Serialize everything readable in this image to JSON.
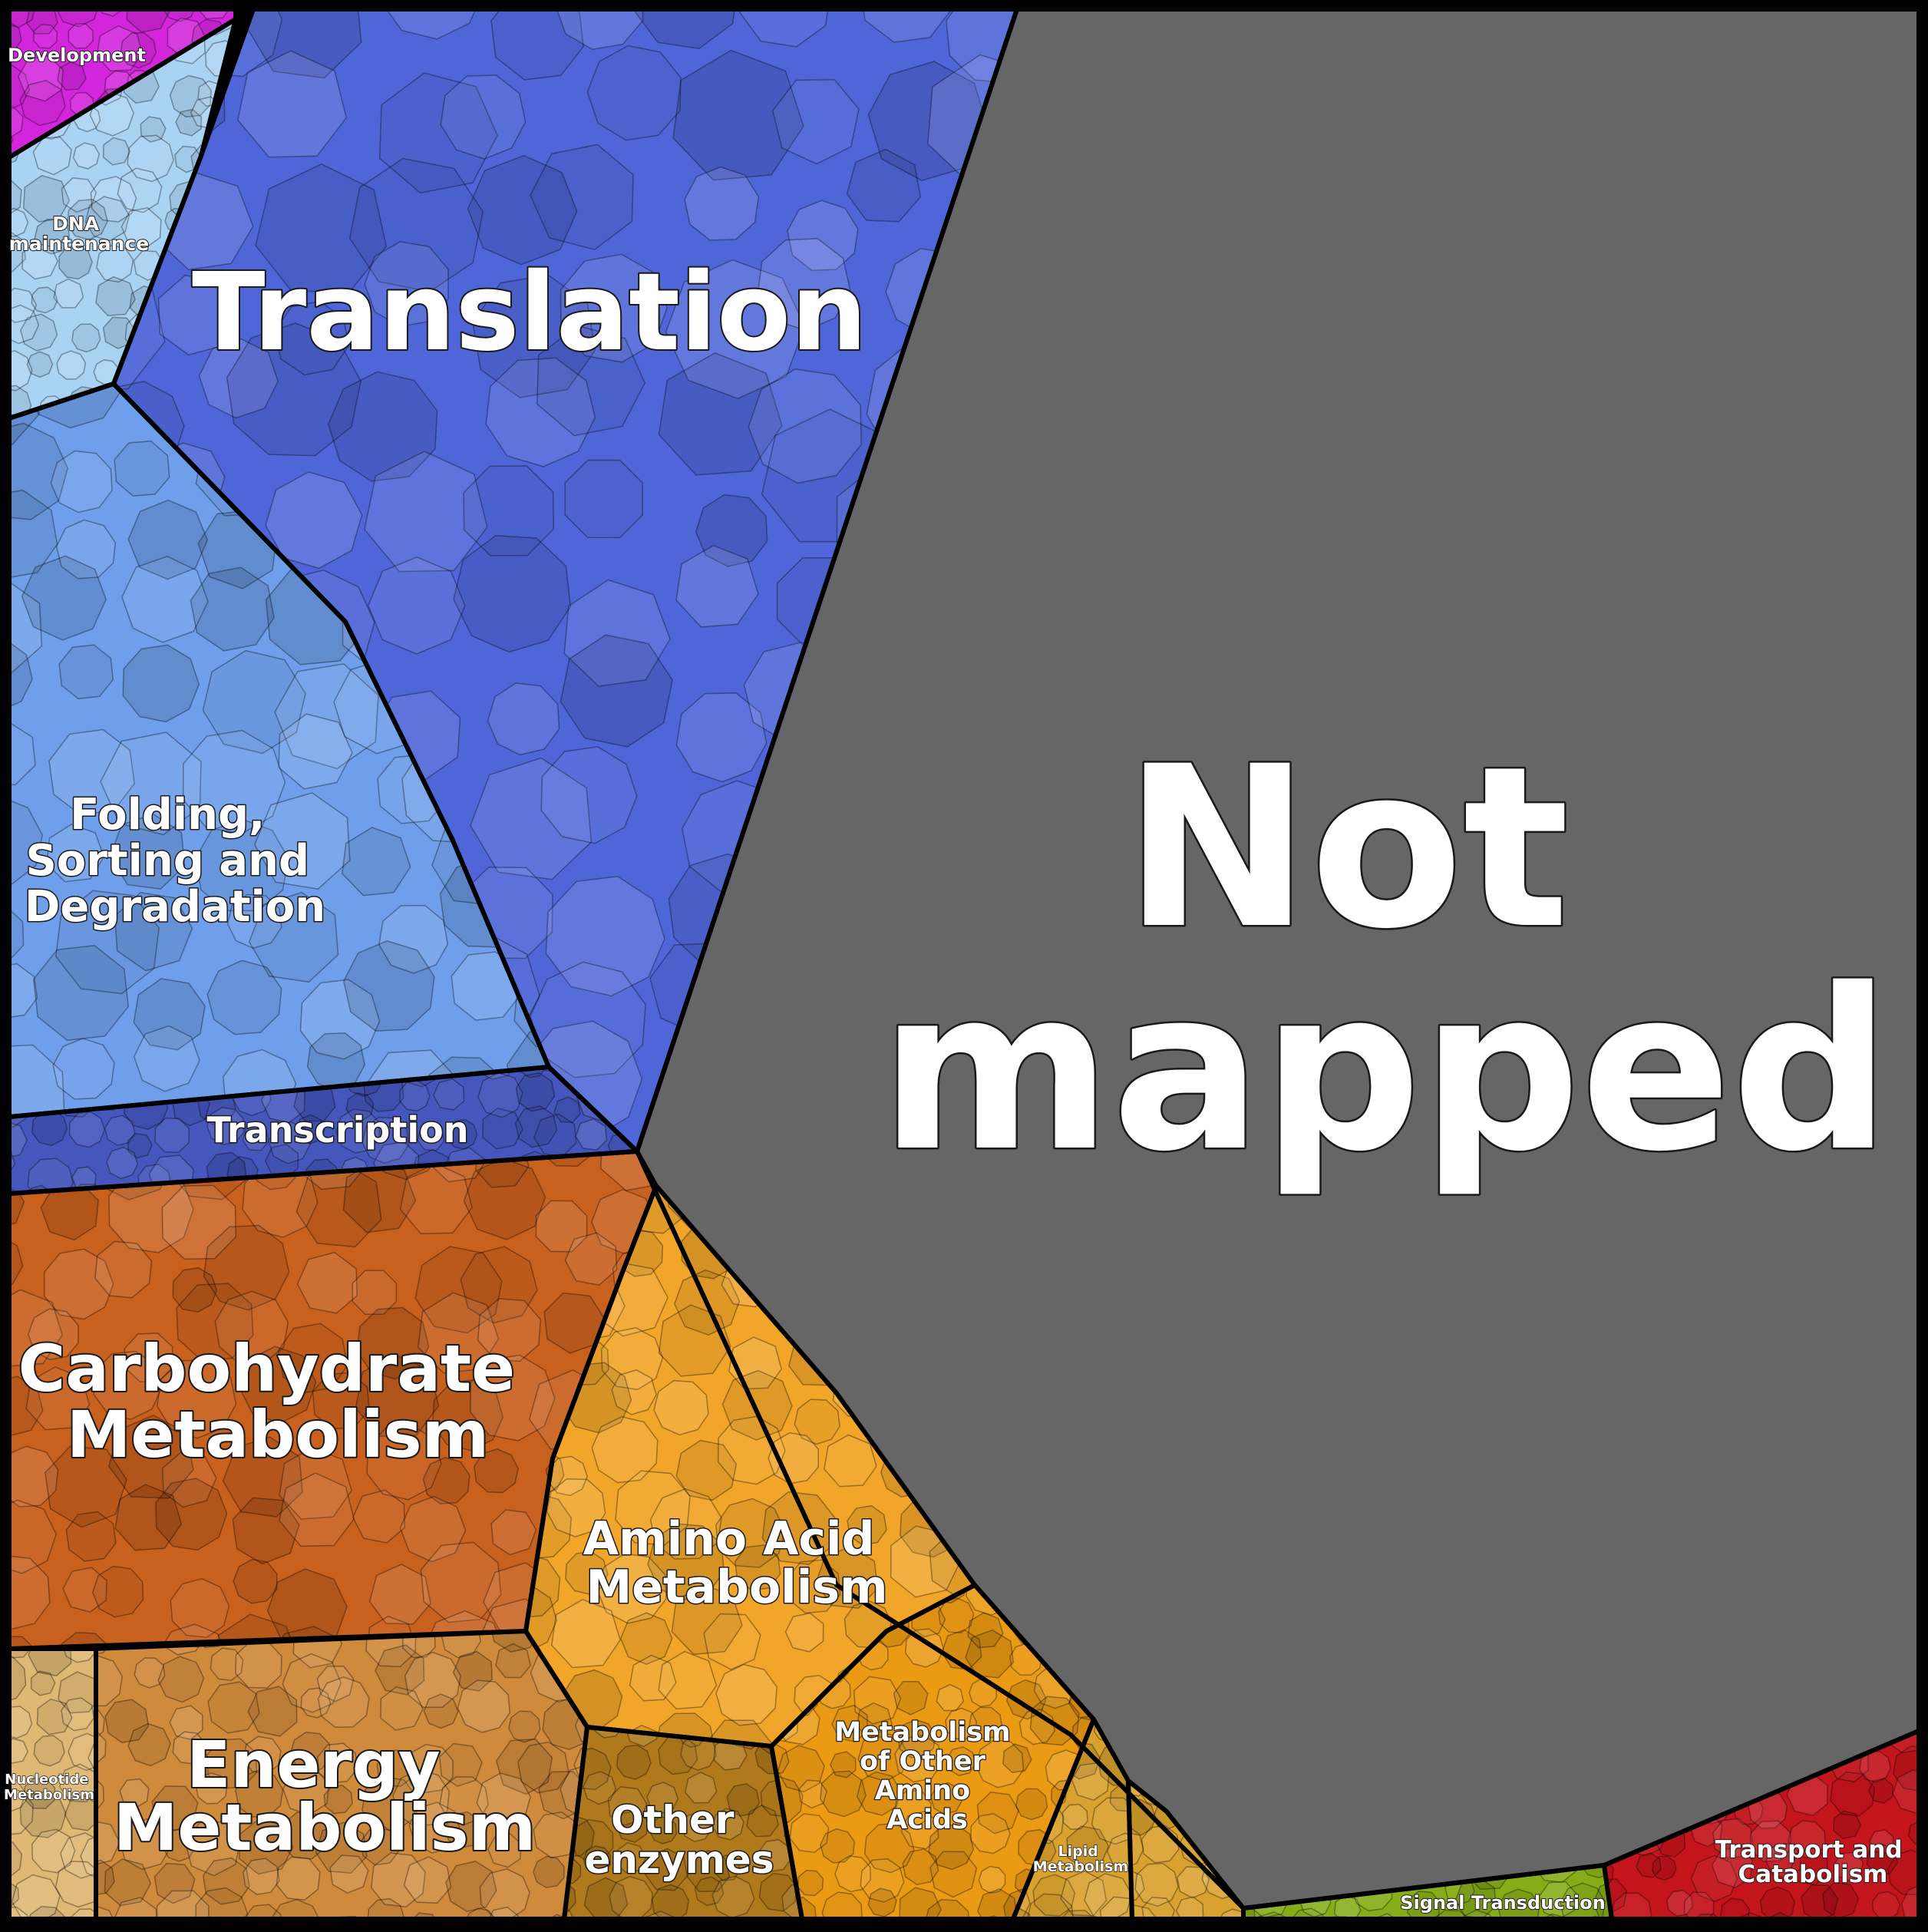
{
  "colors": {
    "not_mapped": "#666666",
    "translation": "#4f66d8",
    "transcription": "#4556bc",
    "folding_sorting_degradation": "#6f9fea",
    "dna_maintenance": "#a9d3f3",
    "development": "#d326dc",
    "carbohydrate_metabolism": "#c8601e",
    "energy_metabolism": "#cf8a3c",
    "amino_acid_metabolism": "#f1a62a",
    "other_enzymes": "#b07a1c",
    "metabolism_other_amino_acids": "#eb9a14",
    "lipid_metabolism": "#d9a12e",
    "nucleotide_metabolism": "#dfb874",
    "signal_transduction": "#86ad18",
    "transport_catabolism": "#c4141c",
    "border": "#000000"
  },
  "cells": {
    "not_mapped": [
      "Not",
      "mapped"
    ],
    "translation": [
      "Translation"
    ],
    "transcription": [
      "Transcription"
    ],
    "folding": [
      "Folding,",
      "Sorting and",
      "Degradation"
    ],
    "dna_maintenance": [
      "DNA",
      "maintenance"
    ],
    "development": [
      "Development"
    ],
    "carbohydrate": [
      "Carbohydrate",
      "Metabolism"
    ],
    "energy": [
      "Energy",
      "Metabolism"
    ],
    "amino_acid": [
      "Amino Acid",
      "Metabolism"
    ],
    "other_enzymes": [
      "Other",
      "enzymes"
    ],
    "other_amino_acids": [
      "Metabolism",
      "of Other",
      "Amino",
      "Acids"
    ],
    "lipid": [
      "Lipid",
      "Metabolism"
    ],
    "nucleotide": [
      "Nucleotide",
      "Metabolism"
    ],
    "signal_transduction": [
      "Signal Transduction"
    ],
    "transport_catabolism": [
      "Transport and",
      "Catabolism"
    ]
  }
}
